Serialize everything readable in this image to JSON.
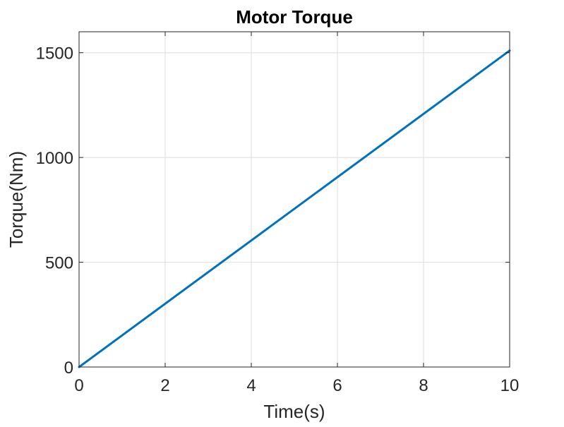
{
  "chart_data": {
    "type": "line",
    "title": "Motor Torque",
    "xlabel": "Time(s)",
    "ylabel": "Torque(Nm)",
    "xlim": [
      0,
      10
    ],
    "ylim": [
      0,
      1600
    ],
    "xticks": [
      0,
      2,
      4,
      6,
      8,
      10
    ],
    "yticks": [
      0,
      500,
      1000,
      1500
    ],
    "xtick_labels": [
      "0",
      "2",
      "4",
      "6",
      "8",
      "10"
    ],
    "ytick_labels": [
      "0",
      "500",
      "1000",
      "1500"
    ],
    "grid": true,
    "series": [
      {
        "color": "#0072bd",
        "x": [
          0,
          10
        ],
        "y": [
          0,
          1510
        ]
      }
    ]
  }
}
